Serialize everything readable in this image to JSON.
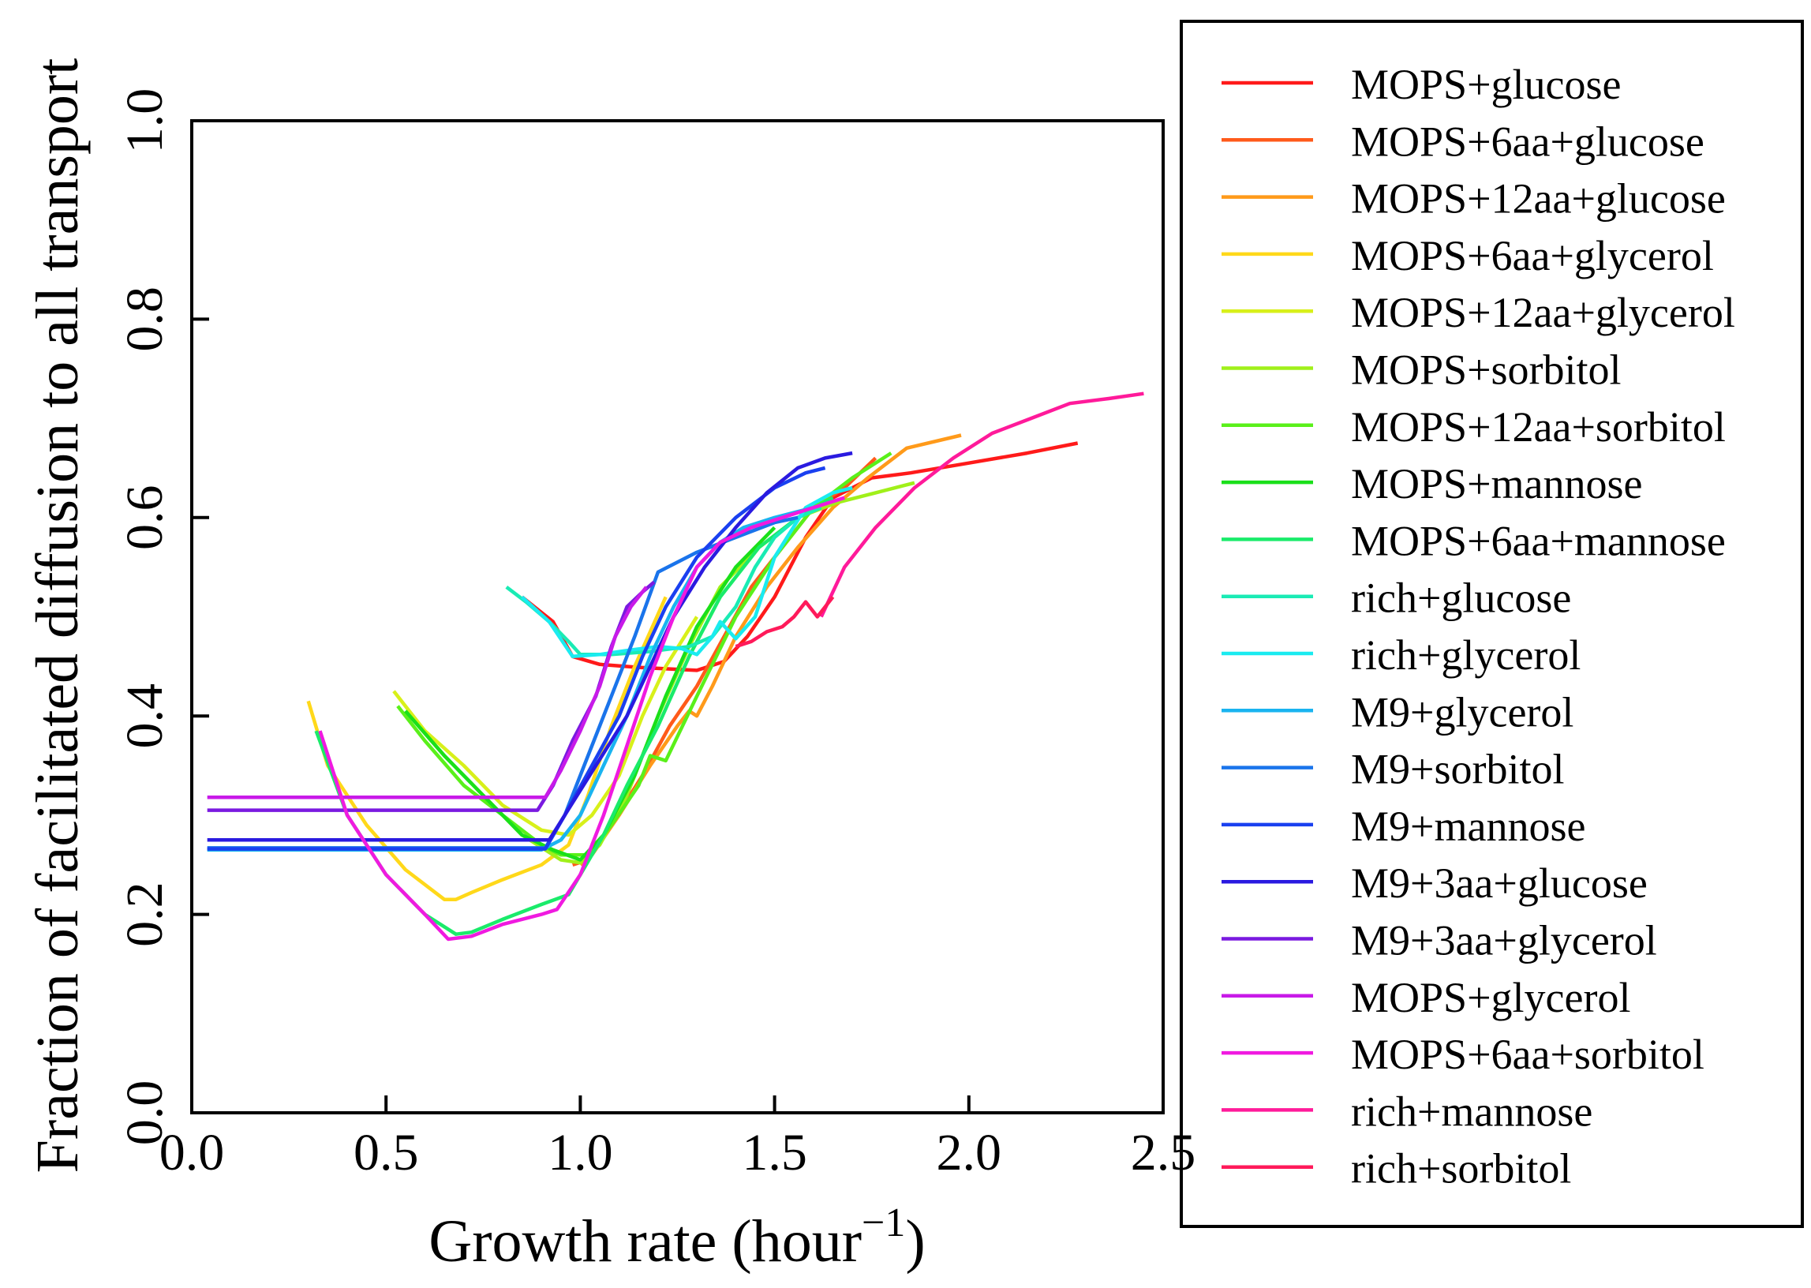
{
  "chart_data": {
    "type": "line",
    "title": "",
    "xlabel": "Growth rate (hour",
    "xlabel_superscript": "−1",
    "xlabel_close": ")",
    "ylabel": "Fraction of facilitated diffusion to all transport",
    "xlim": [
      0.0,
      2.5
    ],
    "ylim": [
      0.0,
      1.0
    ],
    "xticks": [
      "0.0",
      "0.5",
      "1.0",
      "1.5",
      "2.0",
      "2.5"
    ],
    "yticks": [
      "0.0",
      "0.2",
      "0.4",
      "0.6",
      "0.8",
      "1.0"
    ],
    "grid": false,
    "legend_position": "right",
    "series": [
      {
        "name": "MOPS+glucose",
        "color": "#ff1a1a",
        "x": [
          0.85,
          0.93,
          0.98,
          1.05,
          1.15,
          1.25,
          1.3,
          1.37,
          1.43,
          1.5,
          1.58,
          1.65,
          1.75,
          1.85,
          2.0,
          2.15,
          2.28
        ],
        "y": [
          0.52,
          0.495,
          0.46,
          0.452,
          0.449,
          0.447,
          0.446,
          0.455,
          0.48,
          0.52,
          0.58,
          0.62,
          0.64,
          0.645,
          0.655,
          0.665,
          0.675
        ]
      },
      {
        "name": "MOPS+6aa+glucose",
        "color": "#ff5a1a",
        "x": [
          0.98,
          1.02,
          1.08,
          1.16,
          1.23,
          1.3,
          1.37,
          1.44,
          1.52,
          1.6,
          1.68,
          1.76
        ],
        "y": [
          0.25,
          0.255,
          0.29,
          0.34,
          0.39,
          0.43,
          0.48,
          0.53,
          0.57,
          0.61,
          0.63,
          0.66
        ]
      },
      {
        "name": "MOPS+12aa+glucose",
        "color": "#ff9a1a",
        "x": [
          1.0,
          1.03,
          1.1,
          1.18,
          1.25,
          1.28,
          1.3,
          1.34,
          1.4,
          1.48,
          1.56,
          1.65,
          1.74,
          1.84,
          1.98
        ],
        "y": [
          0.25,
          0.26,
          0.3,
          0.35,
          0.39,
          0.405,
          0.4,
          0.43,
          0.48,
          0.53,
          0.57,
          0.61,
          0.64,
          0.67,
          0.683
        ]
      },
      {
        "name": "MOPS+6aa+glycerol",
        "color": "#ffd81a",
        "x": [
          0.3,
          0.35,
          0.45,
          0.55,
          0.65,
          0.68,
          0.72,
          0.8,
          0.9,
          0.97,
          1.02,
          1.08,
          1.14,
          1.22
        ],
        "y": [
          0.415,
          0.35,
          0.29,
          0.245,
          0.215,
          0.215,
          0.222,
          0.235,
          0.25,
          0.27,
          0.32,
          0.39,
          0.45,
          0.52
        ]
      },
      {
        "name": "MOPS+12aa+glycerol",
        "color": "#d8f01a",
        "x": [
          0.52,
          0.6,
          0.7,
          0.8,
          0.9,
          0.97,
          1.03,
          1.1,
          1.16,
          1.22,
          1.3
        ],
        "y": [
          0.425,
          0.385,
          0.35,
          0.31,
          0.285,
          0.28,
          0.3,
          0.34,
          0.4,
          0.45,
          0.5
        ]
      },
      {
        "name": "MOPS+sorbitol",
        "color": "#a0f01a",
        "x": [
          0.55,
          0.65,
          0.75,
          0.85,
          0.95,
          1.0,
          1.05,
          1.12,
          1.2,
          1.28,
          1.36,
          1.46,
          1.56,
          1.66,
          1.76,
          1.86
        ],
        "y": [
          0.405,
          0.36,
          0.32,
          0.28,
          0.255,
          0.252,
          0.27,
          0.32,
          0.4,
          0.47,
          0.53,
          0.57,
          0.6,
          0.615,
          0.625,
          0.635
        ]
      },
      {
        "name": "MOPS+12aa+sorbitol",
        "color": "#5af01a",
        "x": [
          0.53,
          0.6,
          0.7,
          0.8,
          0.9,
          0.95,
          1.02,
          1.08,
          1.15,
          1.18,
          1.22,
          1.3,
          1.4,
          1.5,
          1.6,
          1.7,
          1.8
        ],
        "y": [
          0.41,
          0.375,
          0.33,
          0.3,
          0.27,
          0.26,
          0.26,
          0.29,
          0.33,
          0.36,
          0.355,
          0.42,
          0.5,
          0.56,
          0.61,
          0.64,
          0.665
        ]
      },
      {
        "name": "MOPS+mannose",
        "color": "#1ae01a",
        "x": [
          0.55,
          0.65,
          0.75,
          0.85,
          0.93,
          1.0,
          1.06,
          1.14,
          1.22,
          1.3,
          1.4,
          1.5
        ],
        "y": [
          0.405,
          0.36,
          0.32,
          0.28,
          0.265,
          0.255,
          0.28,
          0.34,
          0.42,
          0.49,
          0.55,
          0.59
        ]
      },
      {
        "name": "MOPS+6aa+mannose",
        "color": "#1aeb6a",
        "x": [
          0.32,
          0.4,
          0.5,
          0.6,
          0.68,
          0.72,
          0.8,
          0.9,
          0.97,
          1.0,
          1.06,
          1.12,
          1.2,
          1.28,
          1.36,
          1.46,
          1.56,
          1.65
        ],
        "y": [
          0.385,
          0.3,
          0.24,
          0.2,
          0.18,
          0.182,
          0.195,
          0.21,
          0.22,
          0.24,
          0.28,
          0.33,
          0.39,
          0.46,
          0.52,
          0.57,
          0.6,
          0.62
        ]
      },
      {
        "name": "rich+glucose",
        "color": "#1aebb4",
        "x": [
          0.81,
          0.86,
          0.92,
          0.97,
          1.0,
          1.08,
          1.18,
          1.24,
          1.28,
          1.34,
          1.4,
          1.45,
          1.5,
          1.56,
          1.62
        ],
        "y": [
          0.53,
          0.515,
          0.495,
          0.475,
          0.462,
          0.462,
          0.465,
          0.468,
          0.47,
          0.48,
          0.51,
          0.55,
          0.58,
          0.6,
          0.61
        ]
      },
      {
        "name": "rich+glycerol",
        "color": "#1aebf0",
        "x": [
          0.85,
          0.92,
          0.98,
          1.05,
          1.12,
          1.2,
          1.26,
          1.3,
          1.34,
          1.36,
          1.4,
          1.45,
          1.5,
          1.58,
          1.65,
          1.7
        ],
        "y": [
          0.52,
          0.495,
          0.46,
          0.462,
          0.466,
          0.47,
          0.468,
          0.462,
          0.48,
          0.495,
          0.478,
          0.5,
          0.56,
          0.61,
          0.625,
          0.63
        ]
      },
      {
        "name": "M9+glycerol",
        "color": "#1ab4f0",
        "x": [
          0.04,
          0.9,
          0.95,
          1.0,
          1.06,
          1.12,
          1.18,
          1.24,
          1.3,
          1.36,
          1.42,
          1.5,
          1.6
        ],
        "y": [
          0.265,
          0.265,
          0.275,
          0.3,
          0.35,
          0.4,
          0.46,
          0.51,
          0.55,
          0.575,
          0.59,
          0.6,
          0.61
        ]
      },
      {
        "name": "M9+sorbitol",
        "color": "#1a74eb",
        "x": [
          0.04,
          0.91,
          0.96,
          1.02,
          1.08,
          1.14,
          1.2,
          1.3,
          1.4,
          1.5,
          1.56
        ],
        "y": [
          0.267,
          0.267,
          0.3,
          0.36,
          0.42,
          0.48,
          0.545,
          0.565,
          0.58,
          0.595,
          0.6
        ]
      },
      {
        "name": "M9+mannose",
        "color": "#1a40f0",
        "x": [
          0.04,
          0.91,
          0.96,
          1.03,
          1.1,
          1.16,
          1.22,
          1.3,
          1.4,
          1.5,
          1.58,
          1.63
        ],
        "y": [
          0.266,
          0.266,
          0.3,
          0.35,
          0.4,
          0.46,
          0.51,
          0.56,
          0.6,
          0.63,
          0.645,
          0.65
        ]
      },
      {
        "name": "M9+3aa+glucose",
        "color": "#2a1ae0",
        "x": [
          0.04,
          0.92,
          0.96,
          1.04,
          1.12,
          1.18,
          1.24,
          1.32,
          1.4,
          1.48,
          1.56,
          1.63,
          1.7
        ],
        "y": [
          0.275,
          0.275,
          0.3,
          0.35,
          0.4,
          0.45,
          0.5,
          0.55,
          0.59,
          0.625,
          0.65,
          0.66,
          0.665
        ]
      },
      {
        "name": "M9+3aa+glycerol",
        "color": "#7a1ae0",
        "x": [
          0.04,
          0.89,
          0.93,
          0.98,
          1.04,
          1.08,
          1.12,
          1.16,
          1.19
        ],
        "y": [
          0.305,
          0.305,
          0.33,
          0.375,
          0.42,
          0.47,
          0.51,
          0.525,
          0.535
        ]
      },
      {
        "name": "MOPS+glycerol",
        "color": "#c81ae8",
        "x": [
          0.04,
          0.91,
          0.95,
          1.0,
          1.05,
          1.09,
          1.13,
          1.17
        ],
        "y": [
          0.318,
          0.318,
          0.345,
          0.385,
          0.43,
          0.48,
          0.51,
          0.53
        ]
      },
      {
        "name": "MOPS+6aa+sorbitol",
        "color": "#f01ae0",
        "x": [
          0.33,
          0.4,
          0.5,
          0.6,
          0.66,
          0.72,
          0.8,
          0.9,
          0.94,
          1.0,
          1.06,
          1.12,
          1.18,
          1.24,
          1.3,
          1.36,
          1.44,
          1.52,
          1.6,
          1.68
        ],
        "y": [
          0.385,
          0.3,
          0.24,
          0.2,
          0.175,
          0.178,
          0.19,
          0.2,
          0.205,
          0.24,
          0.3,
          0.37,
          0.44,
          0.5,
          0.55,
          0.575,
          0.59,
          0.6,
          0.61,
          0.62
        ]
      },
      {
        "name": "rich+mannose",
        "color": "#ff1a9a",
        "x": [
          1.62,
          1.68,
          1.76,
          1.86,
          1.96,
          2.06,
          2.16,
          2.26,
          2.36,
          2.45
        ],
        "y": [
          0.5,
          0.55,
          0.59,
          0.63,
          0.66,
          0.685,
          0.7,
          0.715,
          0.72,
          0.725
        ]
      },
      {
        "name": "rich+sorbitol",
        "color": "#ff1a5a",
        "x": [
          1.4,
          1.44,
          1.48,
          1.52,
          1.55,
          1.58,
          1.61,
          1.65
        ],
        "y": [
          0.47,
          0.475,
          0.485,
          0.49,
          0.5,
          0.515,
          0.5,
          0.52
        ]
      }
    ]
  }
}
